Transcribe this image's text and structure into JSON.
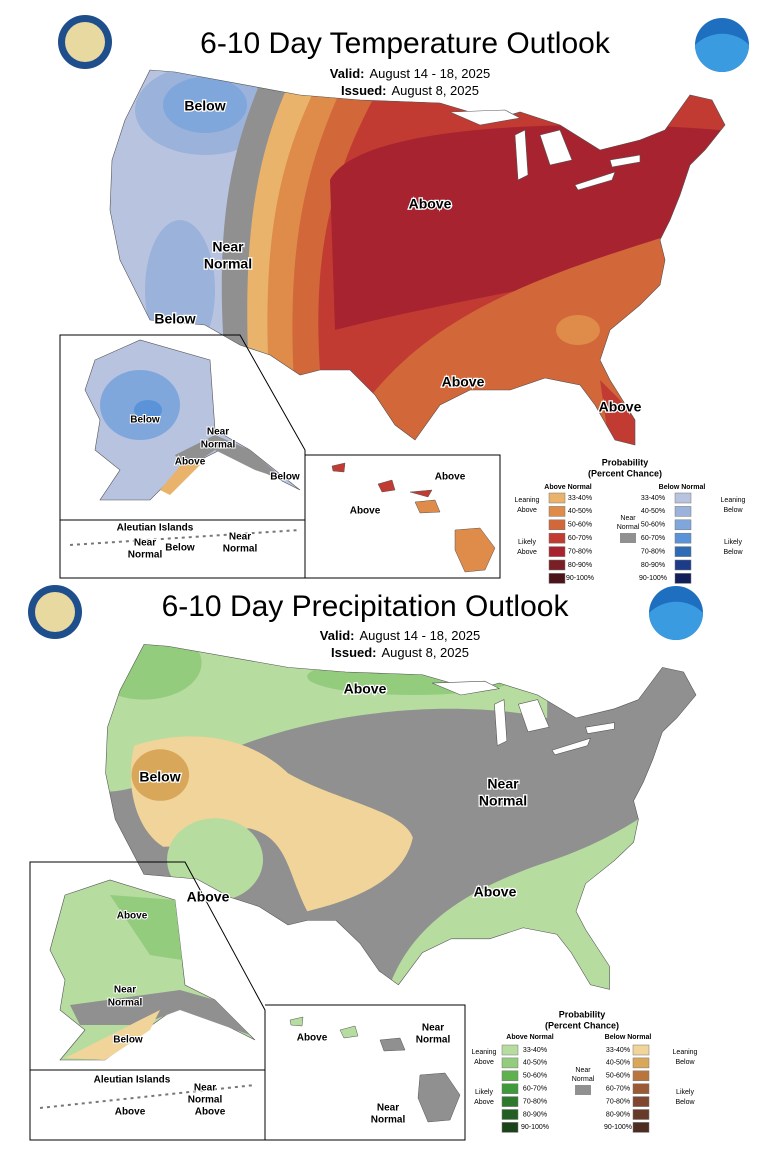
{
  "panels": [
    {
      "title": "6-10 Day Temperature Outlook",
      "valid_label": "Valid:",
      "valid": "August 14 - 18, 2025",
      "issued_label": "Issued:",
      "issued": "August 8, 2025",
      "map_labels": [
        [
          "Below"
        ],
        [
          "Near",
          "Normal"
        ],
        [
          "Below"
        ],
        [
          "Above"
        ],
        [
          "Above"
        ],
        [
          "Above"
        ]
      ],
      "alaska_labels": [
        [
          "Below"
        ],
        [
          "Near",
          "Normal"
        ],
        [
          "Above"
        ],
        [
          "Below"
        ]
      ],
      "aleutian_title": "Aleutian Islands",
      "aleutian_labels": [
        [
          "Near",
          "Normal"
        ],
        [
          "Below"
        ],
        [
          "Near",
          "Normal"
        ]
      ],
      "hawaii_labels": [
        [
          "Above"
        ],
        [
          "Above"
        ]
      ],
      "legend": {
        "title": "Probability",
        "subtitle": "(Percent Chance)",
        "above_header": "Above Normal",
        "below_header": "Below Normal",
        "near": [
          "Near",
          "Normal"
        ],
        "near_color": "#909090",
        "leaning_above": [
          "Leaning",
          "Above"
        ],
        "likely_above": [
          "Likely",
          "Above"
        ],
        "leaning_below": [
          "Leaning",
          "Below"
        ],
        "likely_below": [
          "Likely",
          "Below"
        ],
        "ranges": [
          "33-40%",
          "40-50%",
          "50-60%",
          "60-70%",
          "70-80%",
          "80-90%",
          "90-100%"
        ],
        "above_colors": [
          "#e9b36b",
          "#df8b4a",
          "#d2673a",
          "#c23b32",
          "#a82330",
          "#7a1f26",
          "#4a1418"
        ],
        "below_colors": [
          "#b8c3e0",
          "#9bb2da",
          "#7fa7dc",
          "#5a93d8",
          "#2d6bb5",
          "#1c3c8a",
          "#131f5a"
        ]
      }
    },
    {
      "title": "6-10 Day Precipitation Outlook",
      "valid_label": "Valid:",
      "valid": "August 14 - 18, 2025",
      "issued_label": "Issued:",
      "issued": "August 8, 2025",
      "map_labels": [
        [
          "Above"
        ],
        [
          "Below"
        ],
        [
          "Near",
          "Normal"
        ],
        [
          "Above"
        ],
        [
          "Above"
        ]
      ],
      "alaska_labels": [
        [
          "Above"
        ],
        [
          "Near",
          "Normal"
        ],
        [
          "Below"
        ]
      ],
      "aleutian_title": "Aleutian Islands",
      "aleutian_labels": [
        [
          "Near",
          "Normal"
        ],
        [
          "Above"
        ],
        [
          "Above"
        ]
      ],
      "hawaii_labels": [
        [
          "Above"
        ],
        [
          "Near",
          "Normal"
        ],
        [
          "Near",
          "Normal"
        ]
      ],
      "legend": {
        "title": "Probability",
        "subtitle": "(Percent Chance)",
        "above_header": "Above Normal",
        "below_header": "Below Normal",
        "near": [
          "Near",
          "Normal"
        ],
        "near_color": "#909090",
        "leaning_above": [
          "Leaning",
          "Above"
        ],
        "likely_above": [
          "Likely",
          "Above"
        ],
        "leaning_below": [
          "Leaning",
          "Below"
        ],
        "likely_below": [
          "Likely",
          "Below"
        ],
        "ranges": [
          "33-40%",
          "40-50%",
          "50-60%",
          "60-70%",
          "70-80%",
          "80-90%",
          "90-100%"
        ],
        "above_colors": [
          "#b6dca0",
          "#93cc7c",
          "#5fb04f",
          "#3f9a3c",
          "#2e7a2c",
          "#225e22",
          "#1a431a"
        ],
        "below_colors": [
          "#f0d49a",
          "#d9a75a",
          "#b8763e",
          "#9a5a36",
          "#7f4630",
          "#673a2a",
          "#4f2c22"
        ]
      }
    }
  ]
}
